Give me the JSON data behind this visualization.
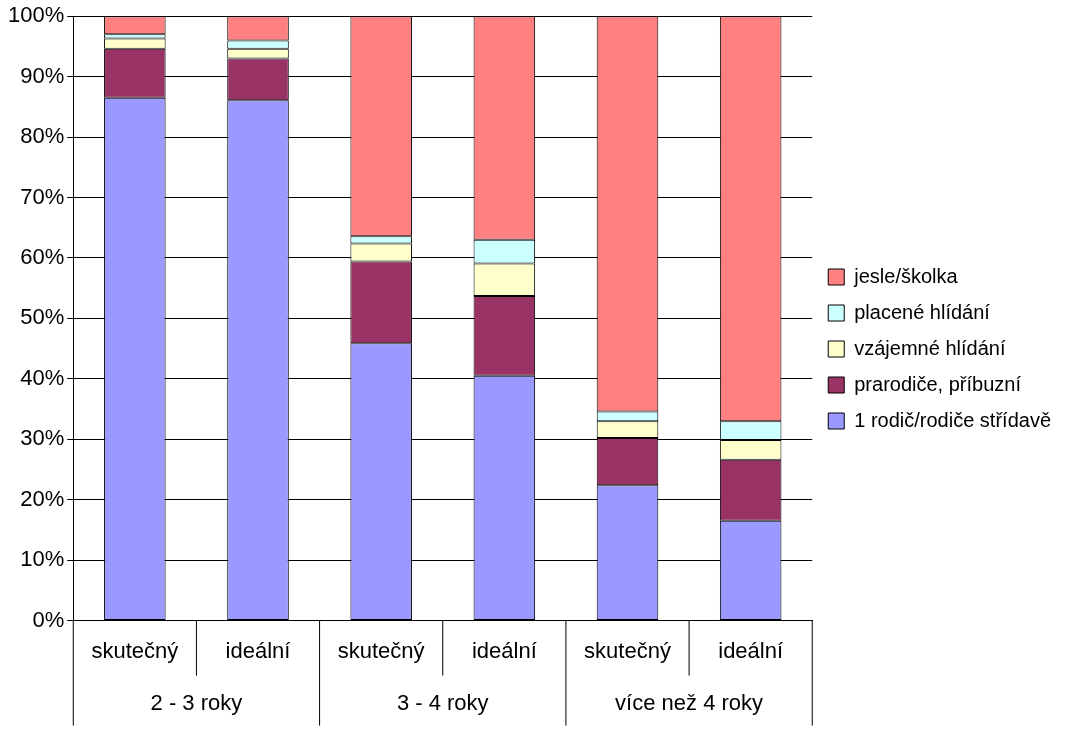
{
  "chart_data": {
    "type": "bar",
    "stacked": true,
    "categories": [
      "skutečný",
      "ideální",
      "skutečný",
      "ideální",
      "skutečný",
      "ideální"
    ],
    "series": [
      {
        "name": "1 rodič/rodiče střídavě",
        "color": "#9999ff",
        "values": [
          86.5,
          86.1,
          45.9,
          40.5,
          22.4,
          16.5
        ]
      },
      {
        "name": "prarodiče, příbuzní",
        "color": "#993366",
        "values": [
          8.1,
          6.9,
          13.5,
          13.2,
          7.8,
          10.1
        ]
      },
      {
        "name": "vzájemné hlídání",
        "color": "#ffffcc",
        "values": [
          1.7,
          1.6,
          3.0,
          5.4,
          2.8,
          3.3
        ]
      },
      {
        "name": "placené hlídání",
        "color": "#ccffff",
        "values": [
          0.7,
          1.4,
          1.2,
          3.9,
          1.6,
          3.1
        ]
      },
      {
        "name": "jesle/školka",
        "color": "#ff8080",
        "values": [
          3.0,
          4.0,
          36.4,
          37.0,
          65.4,
          67.0
        ]
      }
    ],
    "ylim": [
      0,
      100
    ],
    "yticks": [
      {
        "value": 0,
        "label": "0%"
      },
      {
        "value": 10,
        "label": "10%"
      },
      {
        "value": 20,
        "label": "20%"
      },
      {
        "value": 30,
        "label": "30%"
      },
      {
        "value": 40,
        "label": "40%"
      },
      {
        "value": 50,
        "label": "50%"
      },
      {
        "value": 60,
        "label": "60%"
      },
      {
        "value": 70,
        "label": "70%"
      },
      {
        "value": 80,
        "label": "80%"
      },
      {
        "value": 90,
        "label": "90%"
      },
      {
        "value": 100,
        "label": "100%"
      }
    ],
    "grid": "y",
    "legend": "right",
    "annotations": [
      "2 - 3 roky",
      "3 - 4 roky",
      "více než 4 roky"
    ]
  }
}
